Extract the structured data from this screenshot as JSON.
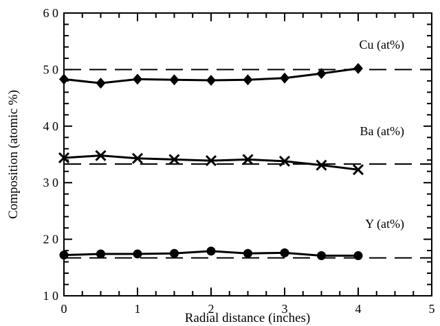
{
  "chart_data": {
    "type": "line",
    "xlabel": "Radial distance (inches)",
    "ylabel": "Composition (atomic %)",
    "xlim": [
      0,
      5
    ],
    "ylim": [
      10,
      60
    ],
    "xticks": [
      "0",
      "1",
      "2",
      "3",
      "4",
      "5"
    ],
    "yticks": [
      "1 0",
      "2 0",
      "3 0",
      "4 0",
      "5 0",
      "6 0"
    ],
    "ytick_values": [
      10,
      20,
      30,
      40,
      50,
      60
    ],
    "x": [
      0,
      0.5,
      1,
      1.5,
      2,
      2.5,
      3,
      3.5,
      4
    ],
    "series": [
      {
        "name": "Cu (at%)",
        "marker": "diamond",
        "values": [
          48.3,
          47.6,
          48.3,
          48.2,
          48.1,
          48.2,
          48.5,
          49.3,
          50.2
        ],
        "reference": 50
      },
      {
        "name": "Ba (at%)",
        "marker": "x",
        "values": [
          34.4,
          34.8,
          34.3,
          34.1,
          33.9,
          34.1,
          33.8,
          33.1,
          32.3
        ],
        "reference": 33.3
      },
      {
        "name": "Y (at%)",
        "marker": "circle",
        "values": [
          17.2,
          17.4,
          17.4,
          17.5,
          17.9,
          17.5,
          17.6,
          17.1,
          17.1
        ],
        "reference": 16.7
      }
    ],
    "grid": false
  }
}
